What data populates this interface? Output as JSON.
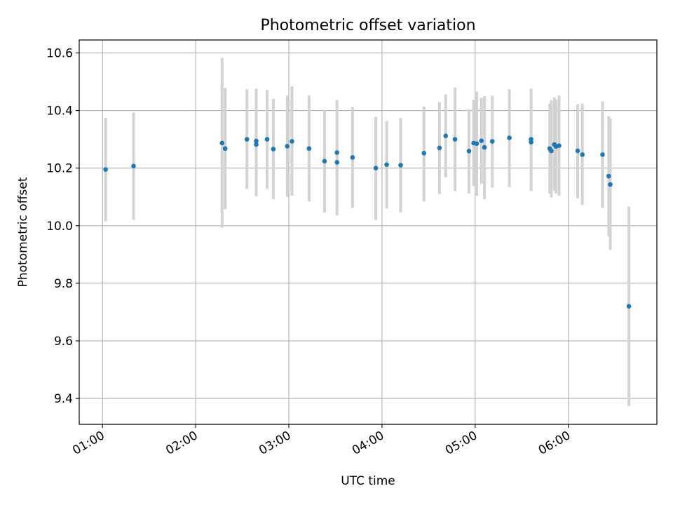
{
  "chart_data": {
    "type": "scatter",
    "title": "Photometric offset variation",
    "xlabel": "UTC time",
    "ylabel": "Photometric offset",
    "x_unit": "UTC time (HH:MM)",
    "xlim": [
      "00:45",
      "06:57"
    ],
    "ylim": [
      9.31,
      10.645
    ],
    "x_ticks": [
      "01:00",
      "02:00",
      "03:00",
      "04:00",
      "05:00",
      "06:00"
    ],
    "y_ticks": [
      9.4,
      9.6,
      9.8,
      10.0,
      10.2,
      10.4,
      10.6
    ],
    "grid": true,
    "point_color": "#1f77b4",
    "errorbar_color": "#d3d3d3",
    "points": [
      {
        "time": "01:02",
        "y": 10.195,
        "lo": 10.015,
        "hi": 10.375
      },
      {
        "time": "01:20",
        "y": 10.207,
        "lo": 10.02,
        "hi": 10.393
      },
      {
        "time": "02:17",
        "y": 10.287,
        "lo": 9.993,
        "hi": 10.583
      },
      {
        "time": "02:19",
        "y": 10.268,
        "lo": 10.057,
        "hi": 10.478
      },
      {
        "time": "02:33",
        "y": 10.3,
        "lo": 10.128,
        "hi": 10.474
      },
      {
        "time": "02:39",
        "y": 10.294,
        "lo": 10.102,
        "hi": 10.476
      },
      {
        "time": "02:39",
        "y": 10.282,
        "lo": 10.11,
        "hi": 10.45
      },
      {
        "time": "02:46",
        "y": 10.3,
        "lo": 10.128,
        "hi": 10.472
      },
      {
        "time": "02:50",
        "y": 10.266,
        "lo": 10.092,
        "hi": 10.44
      },
      {
        "time": "02:59",
        "y": 10.276,
        "lo": 10.1,
        "hi": 10.452
      },
      {
        "time": "03:02",
        "y": 10.293,
        "lo": 10.104,
        "hi": 10.484
      },
      {
        "time": "03:13",
        "y": 10.268,
        "lo": 10.084,
        "hi": 10.452
      },
      {
        "time": "03:23",
        "y": 10.224,
        "lo": 10.046,
        "hi": 10.402
      },
      {
        "time": "03:31",
        "y": 10.254,
        "lo": 10.072,
        "hi": 10.436
      },
      {
        "time": "03:31",
        "y": 10.22,
        "lo": 10.036,
        "hi": 10.404
      },
      {
        "time": "03:41",
        "y": 10.237,
        "lo": 10.062,
        "hi": 10.412
      },
      {
        "time": "03:56",
        "y": 10.2,
        "lo": 10.02,
        "hi": 10.378
      },
      {
        "time": "04:03",
        "y": 10.212,
        "lo": 10.06,
        "hi": 10.364
      },
      {
        "time": "04:12",
        "y": 10.21,
        "lo": 10.046,
        "hi": 10.374
      },
      {
        "time": "04:27",
        "y": 10.252,
        "lo": 10.084,
        "hi": 10.414
      },
      {
        "time": "04:37",
        "y": 10.27,
        "lo": 10.11,
        "hi": 10.428
      },
      {
        "time": "04:41",
        "y": 10.312,
        "lo": 10.168,
        "hi": 10.456
      },
      {
        "time": "04:47",
        "y": 10.3,
        "lo": 10.12,
        "hi": 10.48
      },
      {
        "time": "04:56",
        "y": 10.259,
        "lo": 10.112,
        "hi": 10.404
      },
      {
        "time": "04:59",
        "y": 10.287,
        "lo": 10.138,
        "hi": 10.436
      },
      {
        "time": "05:01",
        "y": 10.285,
        "lo": 10.104,
        "hi": 10.466
      },
      {
        "time": "05:04",
        "y": 10.295,
        "lo": 10.146,
        "hi": 10.444
      },
      {
        "time": "05:06",
        "y": 10.272,
        "lo": 10.092,
        "hi": 10.45
      },
      {
        "time": "05:11",
        "y": 10.293,
        "lo": 10.132,
        "hi": 10.452
      },
      {
        "time": "05:22",
        "y": 10.305,
        "lo": 10.134,
        "hi": 10.474
      },
      {
        "time": "05:36",
        "y": 10.3,
        "lo": 10.12,
        "hi": 10.476
      },
      {
        "time": "05:36",
        "y": 10.29,
        "lo": 10.126,
        "hi": 10.456
      },
      {
        "time": "05:48",
        "y": 10.268,
        "lo": 10.112,
        "hi": 10.424
      },
      {
        "time": "05:49",
        "y": 10.26,
        "lo": 10.098,
        "hi": 10.436
      },
      {
        "time": "05:51",
        "y": 10.282,
        "lo": 10.122,
        "hi": 10.446
      },
      {
        "time": "05:52",
        "y": 10.275,
        "lo": 10.112,
        "hi": 10.438
      },
      {
        "time": "05:54",
        "y": 10.278,
        "lo": 10.104,
        "hi": 10.452
      },
      {
        "time": "06:06",
        "y": 10.26,
        "lo": 10.094,
        "hi": 10.422
      },
      {
        "time": "06:09",
        "y": 10.247,
        "lo": 10.072,
        "hi": 10.424
      },
      {
        "time": "06:22",
        "y": 10.247,
        "lo": 10.062,
        "hi": 10.432
      },
      {
        "time": "06:26",
        "y": 10.172,
        "lo": 9.964,
        "hi": 10.38
      },
      {
        "time": "06:27",
        "y": 10.143,
        "lo": 9.916,
        "hi": 10.372
      },
      {
        "time": "06:39",
        "y": 9.72,
        "lo": 9.374,
        "hi": 10.066
      }
    ]
  }
}
